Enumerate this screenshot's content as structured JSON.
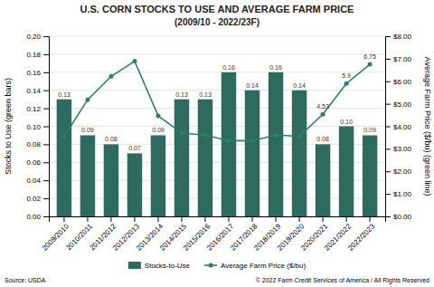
{
  "chart_data": {
    "type": "bar",
    "title": "U.S. CORN STOCKS TO USE AND AVERAGE FARM PRICE",
    "subtitle": "(2009/10 - 2022/23F)",
    "categories": [
      "2009/2010",
      "2010/2011",
      "2011/2012",
      "2012/2013",
      "2013/2014",
      "2014/2015",
      "2015/2016",
      "2016/2017",
      "2017/2018",
      "2018/2019",
      "2019/2020",
      "2020/2021",
      "2021/2022",
      "2022/2023"
    ],
    "series": [
      {
        "name": "Stocks-to-Use",
        "type": "bar",
        "color": "#2d6b5e",
        "values": [
          0.13,
          0.09,
          0.08,
          0.07,
          0.09,
          0.13,
          0.13,
          0.16,
          0.14,
          0.16,
          0.14,
          0.08,
          0.1,
          0.09
        ],
        "value_labels": [
          "0.13",
          "0.09",
          "0.08",
          "0.07",
          "0.09",
          "0.13",
          "0.13",
          "0.16",
          "0.14",
          "0.16",
          "0.14",
          "0.08",
          "0.10",
          "0.09"
        ],
        "data_labels": true
      },
      {
        "name": "Average Farm Price ($/bu)",
        "type": "line",
        "axis": "y2",
        "color": "#2d7d6e",
        "marker": "circle",
        "values": [
          3.55,
          5.18,
          6.22,
          6.89,
          4.46,
          3.7,
          3.61,
          3.36,
          3.36,
          3.61,
          3.56,
          4.53,
          5.9,
          6.75
        ],
        "value_labels": [
          null,
          null,
          null,
          null,
          null,
          null,
          null,
          null,
          null,
          null,
          null,
          "4.53",
          "5.9",
          "6.75"
        ],
        "data_labels": true
      }
    ],
    "ylabel": "Stocks to Use (green bars)",
    "y2label": "Average Farm Price ($/bu) (green line)",
    "ylim": [
      0,
      0.2
    ],
    "yticks": [
      {
        "value": 0,
        "label": "0.00"
      },
      {
        "value": 0.02,
        "label": "0.02"
      },
      {
        "value": 0.04,
        "label": "0.04"
      },
      {
        "value": 0.06,
        "label": "0.06"
      },
      {
        "value": 0.08,
        "label": "0.08"
      },
      {
        "value": 0.1,
        "label": "0.10"
      },
      {
        "value": 0.12,
        "label": "0.12"
      },
      {
        "value": 0.14,
        "label": "0.14"
      },
      {
        "value": 0.16,
        "label": "0.16"
      },
      {
        "value": 0.18,
        "label": "0.18"
      },
      {
        "value": 0.2,
        "label": "0.20"
      }
    ],
    "y2lim": [
      0.0,
      8.0
    ],
    "y2ticks": [
      {
        "value": 0.0,
        "label": "$0.00"
      },
      {
        "value": 1.0,
        "label": "$1.00"
      },
      {
        "value": 2.0,
        "label": "$2.00"
      },
      {
        "value": 3.0,
        "label": "$3.00"
      },
      {
        "value": 4.0,
        "label": "$4.00"
      },
      {
        "value": 5.0,
        "label": "$5.00"
      },
      {
        "value": 6.0,
        "label": "$6.00"
      },
      {
        "value": 7.0,
        "label": "$7.00"
      },
      {
        "value": 8.0,
        "label": "$8.00"
      }
    ],
    "grid": true,
    "legend": "bottom",
    "source": "Source: USDA",
    "copyright": "© 2022 Farm Credit Services of America / All Rights Reserved"
  }
}
